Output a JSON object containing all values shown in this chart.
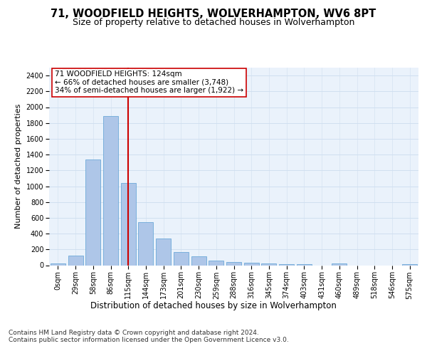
{
  "title": "71, WOODFIELD HEIGHTS, WOLVERHAMPTON, WV6 8PT",
  "subtitle": "Size of property relative to detached houses in Wolverhampton",
  "xlabel": "Distribution of detached houses by size in Wolverhampton",
  "ylabel": "Number of detached properties",
  "bar_color": "#aec6e8",
  "bar_edge_color": "#5a9fd4",
  "grid_color": "#d0dff0",
  "background_color": "#eaf2fb",
  "vline_color": "#cc0000",
  "vline_x": 4.0,
  "annotation_text": "71 WOODFIELD HEIGHTS: 124sqm\n← 66% of detached houses are smaller (3,748)\n34% of semi-detached houses are larger (1,922) →",
  "annotation_box_color": "#ffffff",
  "annotation_box_edge": "#cc0000",
  "categories": [
    "0sqm",
    "29sqm",
    "58sqm",
    "86sqm",
    "115sqm",
    "144sqm",
    "173sqm",
    "201sqm",
    "230sqm",
    "259sqm",
    "288sqm",
    "316sqm",
    "345sqm",
    "374sqm",
    "403sqm",
    "431sqm",
    "460sqm",
    "489sqm",
    "518sqm",
    "546sqm",
    "575sqm"
  ],
  "bar_values": [
    20,
    125,
    1340,
    1890,
    1045,
    545,
    335,
    165,
    110,
    62,
    38,
    28,
    22,
    18,
    10,
    0,
    20,
    0,
    0,
    0,
    18
  ],
  "ylim": [
    0,
    2500
  ],
  "yticks": [
    0,
    200,
    400,
    600,
    800,
    1000,
    1200,
    1400,
    1600,
    1800,
    2000,
    2200,
    2400
  ],
  "footer_text": "Contains HM Land Registry data © Crown copyright and database right 2024.\nContains public sector information licensed under the Open Government Licence v3.0.",
  "title_fontsize": 10.5,
  "subtitle_fontsize": 9,
  "xlabel_fontsize": 8.5,
  "ylabel_fontsize": 8,
  "tick_fontsize": 7,
  "annotation_fontsize": 7.5,
  "footer_fontsize": 6.5
}
